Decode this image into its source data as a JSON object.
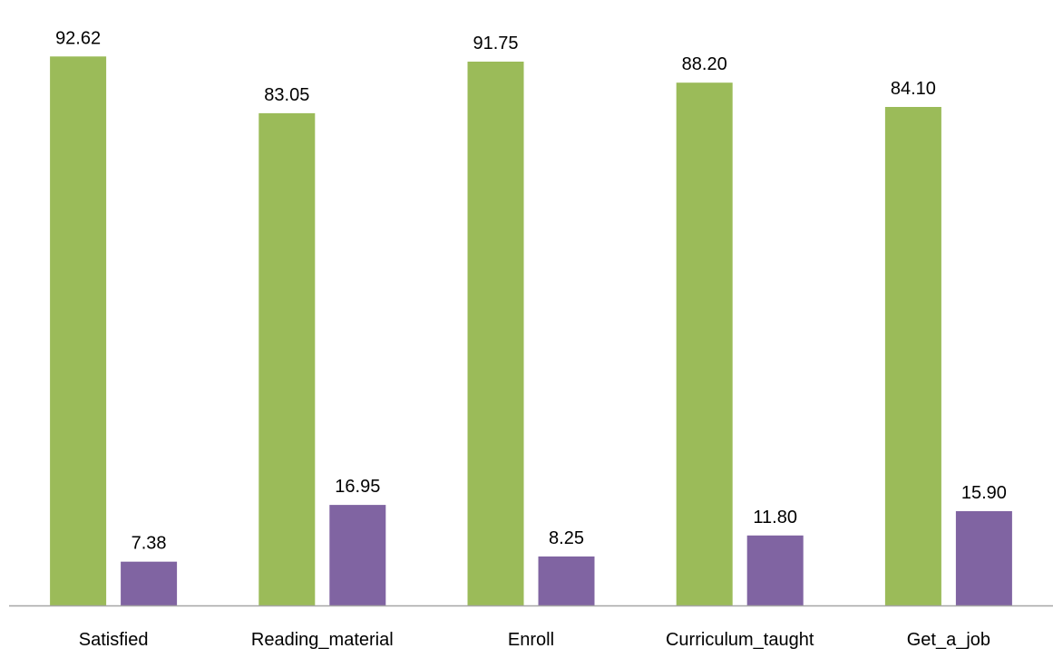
{
  "chart_data": {
    "type": "bar",
    "categories": [
      "Satisfied",
      "Reading_material",
      "Enroll",
      "Curriculum_taught",
      "Get_a_job"
    ],
    "series": [
      {
        "values": [
          92.62,
          83.05,
          91.75,
          88.2,
          84.1
        ],
        "labels": [
          "92.62",
          "83.05",
          "91.75",
          "88.20",
          "84.10"
        ],
        "color": "#9BBB59"
      },
      {
        "values": [
          7.38,
          16.95,
          8.25,
          11.8,
          15.9
        ],
        "labels": [
          "7.38",
          "16.95",
          "8.25",
          "11.80",
          "15.90"
        ],
        "color": "#8064A2"
      }
    ],
    "ylim": [
      0,
      100
    ],
    "grid": false,
    "axis_color": "#A6A6A6"
  }
}
